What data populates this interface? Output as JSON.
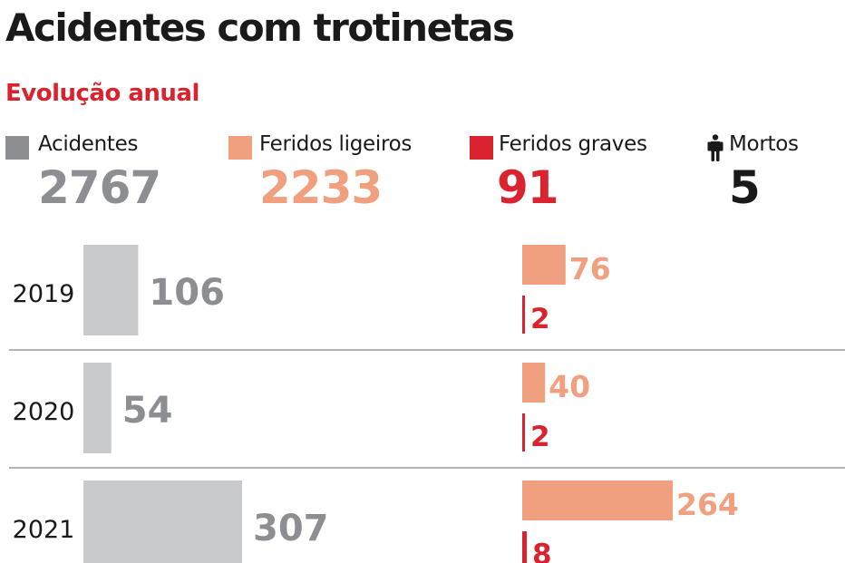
{
  "title": "Acidentes com trotinetas",
  "subtitle": "Evolução anual",
  "colors": {
    "accidents": "#8c8e92",
    "accidents_bar": "#c9cacc",
    "light_injuries": "#f0a07e",
    "serious_injuries": "#d9232e",
    "deaths": "#1a1a1a"
  },
  "legend": [
    {
      "label": "Acidentes",
      "total": "2767",
      "icon": "square-swatch"
    },
    {
      "label": "Feridos ligeiros",
      "total": "2233",
      "icon": "square-swatch"
    },
    {
      "label": "Feridos graves",
      "total": "91",
      "icon": "square-swatch"
    },
    {
      "label": "Mortos",
      "total": "5",
      "icon": "person-icon"
    }
  ],
  "chart_data": {
    "type": "bar",
    "categories": [
      "2019",
      "2020",
      "2021"
    ],
    "series": [
      {
        "name": "Acidentes",
        "values": [
          106,
          54,
          307
        ]
      },
      {
        "name": "Feridos ligeiros",
        "values": [
          76,
          40,
          264
        ]
      },
      {
        "name": "Feridos graves",
        "values": [
          2,
          2,
          8
        ]
      }
    ],
    "grid": false
  }
}
